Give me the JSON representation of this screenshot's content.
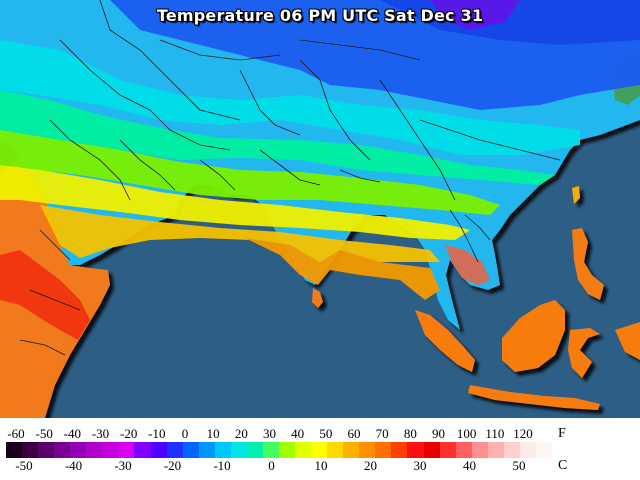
{
  "title": "Temperature 06 PM UTC Sat Dec 31",
  "legend": {
    "fahrenheit_unit": "F",
    "celsius_unit": "C",
    "fahrenheit_ticks": [
      "-60",
      "-50",
      "-40",
      "-30",
      "-20",
      "-10",
      "0",
      "10",
      "20",
      "30",
      "40",
      "50",
      "60",
      "70",
      "80",
      "90",
      "100",
      "110",
      "120"
    ],
    "celsius_ticks": [
      "-50",
      "-40",
      "-30",
      "-20",
      "-10",
      "0",
      "10",
      "20",
      "30",
      "40",
      "50"
    ],
    "scale_colors": [
      "#1a001a",
      "#3a0040",
      "#5a006a",
      "#7a0090",
      "#9600b4",
      "#b000cc",
      "#c400e0",
      "#d800f0",
      "#8000ff",
      "#5000ff",
      "#2030ff",
      "#0064ff",
      "#0096ff",
      "#00c8ff",
      "#00e6e6",
      "#00f0b0",
      "#40ff60",
      "#a0ff00",
      "#e0ff00",
      "#ffff00",
      "#ffd800",
      "#ffb000",
      "#ff9000",
      "#ff7000",
      "#ff4000",
      "#ff1010",
      "#e80000",
      "#ff3030",
      "#ff6060",
      "#ff9090",
      "#ffb0b0",
      "#ffd0d0",
      "#ffe8e8",
      "#fff5f5"
    ]
  },
  "map": {
    "ocean_color": "#2d5f86",
    "border_color": "#1a1a1a"
  }
}
